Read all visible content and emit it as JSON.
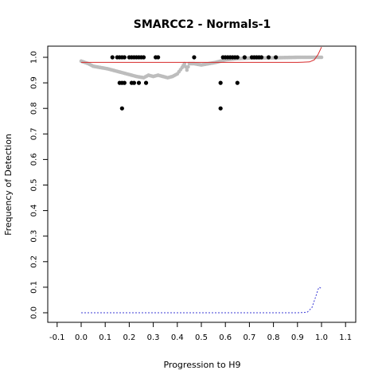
{
  "chart_data": {
    "type": "scatter",
    "title": "SMARCC2 - Normals-1",
    "xlabel": "Progression to H9",
    "ylabel": "Frequency of Detection",
    "xlim": [
      -0.1,
      1.1
    ],
    "ylim": [
      0.0,
      1.0
    ],
    "x_ticks": [
      "-0.1",
      "0.0",
      "0.1",
      "0.2",
      "0.3",
      "0.4",
      "0.5",
      "0.6",
      "0.7",
      "0.8",
      "0.9",
      "1.0",
      "1.1"
    ],
    "y_ticks": [
      "0.0",
      "0.1",
      "0.2",
      "0.3",
      "0.4",
      "0.5",
      "0.6",
      "0.7",
      "0.8",
      "0.9",
      "1.0"
    ],
    "grid": false,
    "colors": {
      "points": "#000000",
      "running_mean": "#bdbdbd",
      "fit_line": "#d62728",
      "density_line": "#3b3bd6"
    },
    "series": [
      {
        "kind": "points",
        "points": [
          [
            0.13,
            1.0
          ],
          [
            0.15,
            1.0
          ],
          [
            0.16,
            1.0
          ],
          [
            0.17,
            1.0
          ],
          [
            0.18,
            1.0
          ],
          [
            0.2,
            1.0
          ],
          [
            0.21,
            1.0
          ],
          [
            0.22,
            1.0
          ],
          [
            0.23,
            1.0
          ],
          [
            0.24,
            1.0
          ],
          [
            0.25,
            1.0
          ],
          [
            0.26,
            1.0
          ],
          [
            0.31,
            1.0
          ],
          [
            0.32,
            1.0
          ],
          [
            0.47,
            1.0
          ],
          [
            0.59,
            1.0
          ],
          [
            0.6,
            1.0
          ],
          [
            0.61,
            1.0
          ],
          [
            0.62,
            1.0
          ],
          [
            0.63,
            1.0
          ],
          [
            0.64,
            1.0
          ],
          [
            0.65,
            1.0
          ],
          [
            0.68,
            1.0
          ],
          [
            0.71,
            1.0
          ],
          [
            0.72,
            1.0
          ],
          [
            0.73,
            1.0
          ],
          [
            0.74,
            1.0
          ],
          [
            0.75,
            1.0
          ],
          [
            0.78,
            1.0
          ],
          [
            0.81,
            1.0
          ],
          [
            0.16,
            0.9
          ],
          [
            0.17,
            0.9
          ],
          [
            0.18,
            0.9
          ],
          [
            0.21,
            0.9
          ],
          [
            0.22,
            0.9
          ],
          [
            0.24,
            0.9
          ],
          [
            0.27,
            0.9
          ],
          [
            0.58,
            0.9
          ],
          [
            0.65,
            0.9
          ],
          [
            0.17,
            0.8
          ],
          [
            0.58,
            0.8
          ]
        ]
      },
      {
        "kind": "running_mean",
        "points": [
          [
            0.0,
            0.985
          ],
          [
            0.03,
            0.975
          ],
          [
            0.05,
            0.965
          ],
          [
            0.08,
            0.96
          ],
          [
            0.11,
            0.955
          ],
          [
            0.13,
            0.95
          ],
          [
            0.15,
            0.945
          ],
          [
            0.17,
            0.94
          ],
          [
            0.19,
            0.935
          ],
          [
            0.21,
            0.93
          ],
          [
            0.23,
            0.925
          ],
          [
            0.26,
            0.92
          ],
          [
            0.28,
            0.93
          ],
          [
            0.3,
            0.925
          ],
          [
            0.32,
            0.93
          ],
          [
            0.34,
            0.925
          ],
          [
            0.36,
            0.92
          ],
          [
            0.38,
            0.925
          ],
          [
            0.4,
            0.935
          ],
          [
            0.42,
            0.96
          ],
          [
            0.43,
            0.975
          ],
          [
            0.44,
            0.95
          ],
          [
            0.45,
            0.975
          ],
          [
            0.47,
            0.975
          ],
          [
            0.5,
            0.97
          ],
          [
            0.53,
            0.975
          ],
          [
            0.56,
            0.98
          ],
          [
            0.6,
            0.99
          ],
          [
            0.65,
            0.995
          ],
          [
            0.7,
            0.997
          ],
          [
            0.8,
            0.998
          ],
          [
            0.9,
            1.0
          ],
          [
            1.0,
            1.0
          ]
        ]
      },
      {
        "kind": "fit_line",
        "points": [
          [
            0.0,
            0.98
          ],
          [
            0.2,
            0.98
          ],
          [
            0.4,
            0.98
          ],
          [
            0.6,
            0.98
          ],
          [
            0.8,
            0.98
          ],
          [
            0.9,
            0.98
          ],
          [
            0.95,
            0.982
          ],
          [
            0.97,
            0.99
          ],
          [
            0.985,
            1.01
          ],
          [
            1.0,
            1.04
          ]
        ]
      },
      {
        "kind": "density_line",
        "points": [
          [
            0.0,
            0.0
          ],
          [
            0.2,
            0.0
          ],
          [
            0.4,
            0.0
          ],
          [
            0.6,
            0.0
          ],
          [
            0.8,
            0.0
          ],
          [
            0.9,
            0.0
          ],
          [
            0.94,
            0.002
          ],
          [
            0.96,
            0.02
          ],
          [
            0.975,
            0.06
          ],
          [
            0.985,
            0.09
          ],
          [
            0.99,
            0.1
          ],
          [
            1.0,
            0.095
          ]
        ]
      }
    ]
  }
}
